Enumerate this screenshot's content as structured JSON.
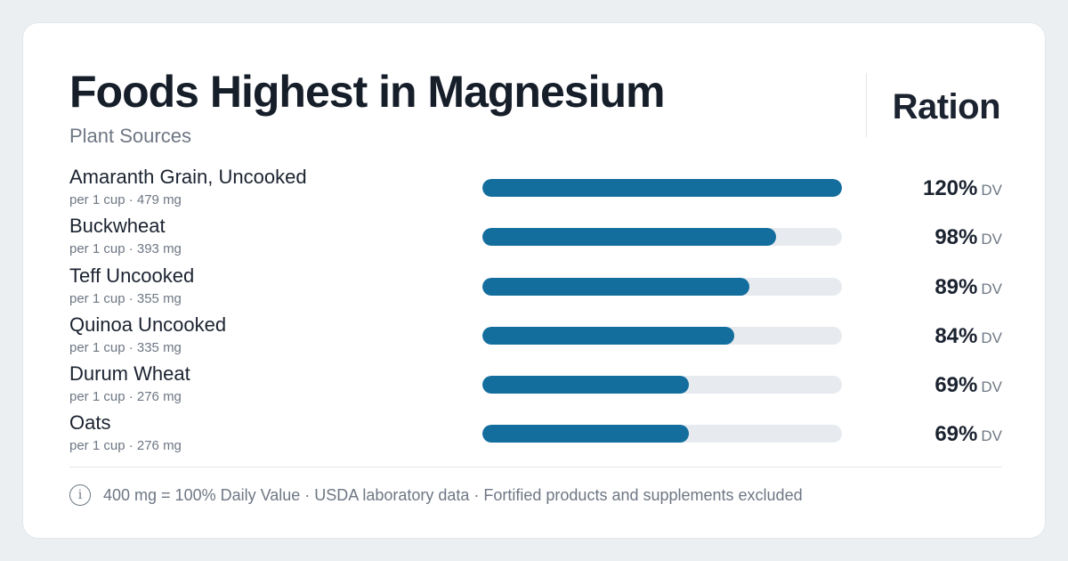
{
  "header": {
    "title": "Foods Highest in Magnesium",
    "subtitle": "Plant Sources",
    "brand": "Ration"
  },
  "chart_data": {
    "type": "bar",
    "title": "Foods Highest in Magnesium",
    "subtitle": "Plant Sources",
    "unit": "DV",
    "xlim": [
      0,
      120
    ],
    "categories": [
      "Amaranth Grain, Uncooked",
      "Buckwheat",
      "Teff Uncooked",
      "Quinoa Uncooked",
      "Durum Wheat",
      "Oats"
    ],
    "values": [
      120,
      98,
      89,
      84,
      69,
      69
    ],
    "servings": [
      "per 1 cup · 479 mg",
      "per 1 cup · 393 mg",
      "per 1 cup · 355 mg",
      "per 1 cup · 335 mg",
      "per 1 cup · 276 mg",
      "per 1 cup · 276 mg"
    ],
    "value_labels": [
      "120%",
      "98%",
      "89%",
      "84%",
      "69%",
      "69%"
    ],
    "bar_color": "#136e9e",
    "track_color": "#e7ebef"
  },
  "footer": {
    "icon": "info-icon",
    "icon_glyph": "i",
    "note": "400 mg = 100% Daily Value · USDA laboratory data · Fortified products and supplements excluded"
  }
}
